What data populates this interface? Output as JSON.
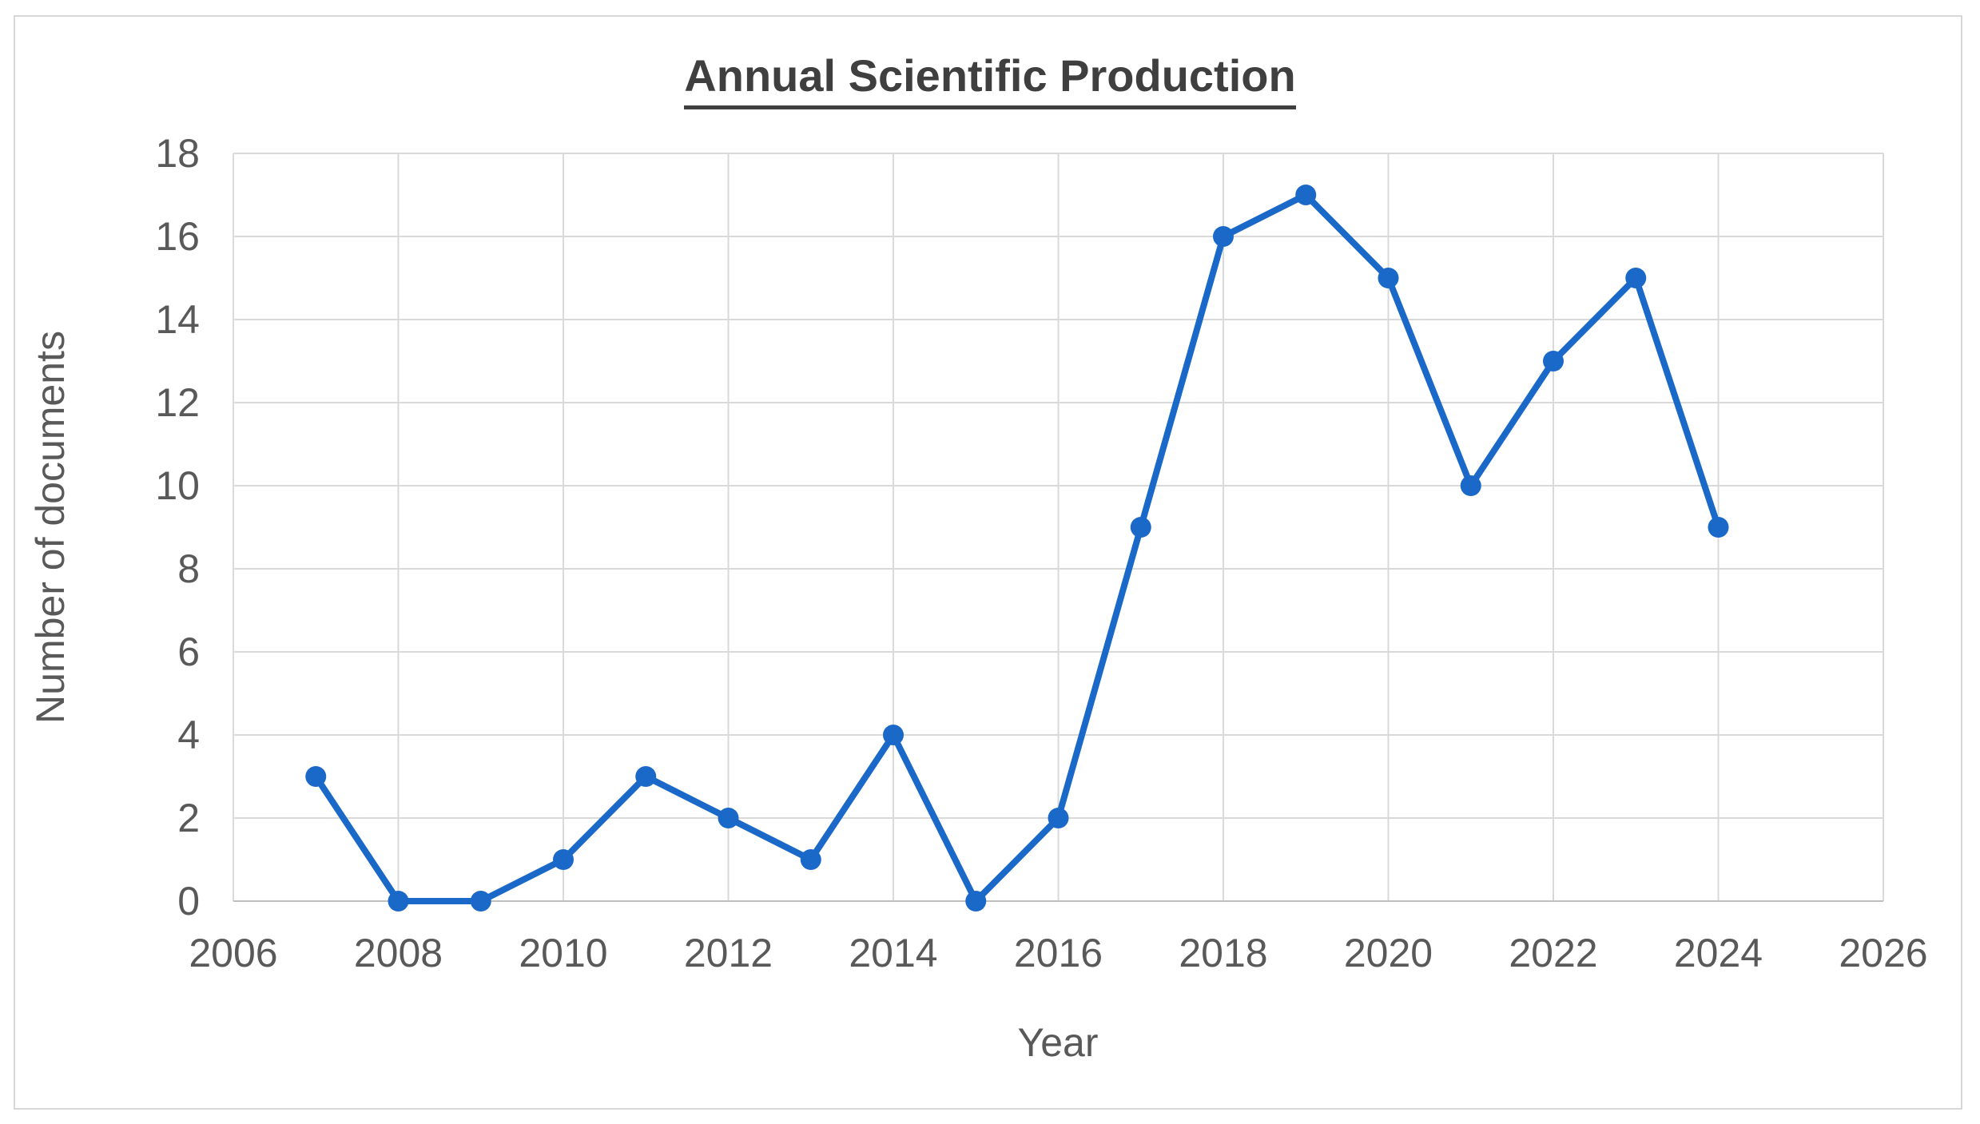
{
  "title": "Annual Scientific Production",
  "chart_data": {
    "type": "line",
    "title": "Annual Scientific Production",
    "xlabel": "Year",
    "ylabel": "Number of documents",
    "series": [
      {
        "name": "Number of documents",
        "x": [
          2007,
          2008,
          2009,
          2010,
          2011,
          2012,
          2013,
          2014,
          2015,
          2016,
          2017,
          2018,
          2019,
          2020,
          2021,
          2022,
          2023,
          2024
        ],
        "values": [
          3,
          0,
          0,
          1,
          3,
          2,
          1,
          4,
          0,
          2,
          9,
          16,
          17,
          15,
          10,
          13,
          15,
          9
        ]
      }
    ],
    "xlim": [
      2006,
      2026
    ],
    "ylim": [
      0,
      18
    ],
    "x_ticks": [
      2006,
      2008,
      2010,
      2012,
      2014,
      2016,
      2018,
      2020,
      2022,
      2024,
      2026
    ],
    "y_ticks": [
      0,
      2,
      4,
      6,
      8,
      10,
      12,
      14,
      16,
      18
    ],
    "grid": "both",
    "legend": "none",
    "marker": "circle",
    "colors": {
      "line": "#1a69c9",
      "grid": "#d9d9d9",
      "axis": "#bfbfbf",
      "text": "#595959",
      "title": "#3f3f3f",
      "background": "#ffffff"
    }
  }
}
